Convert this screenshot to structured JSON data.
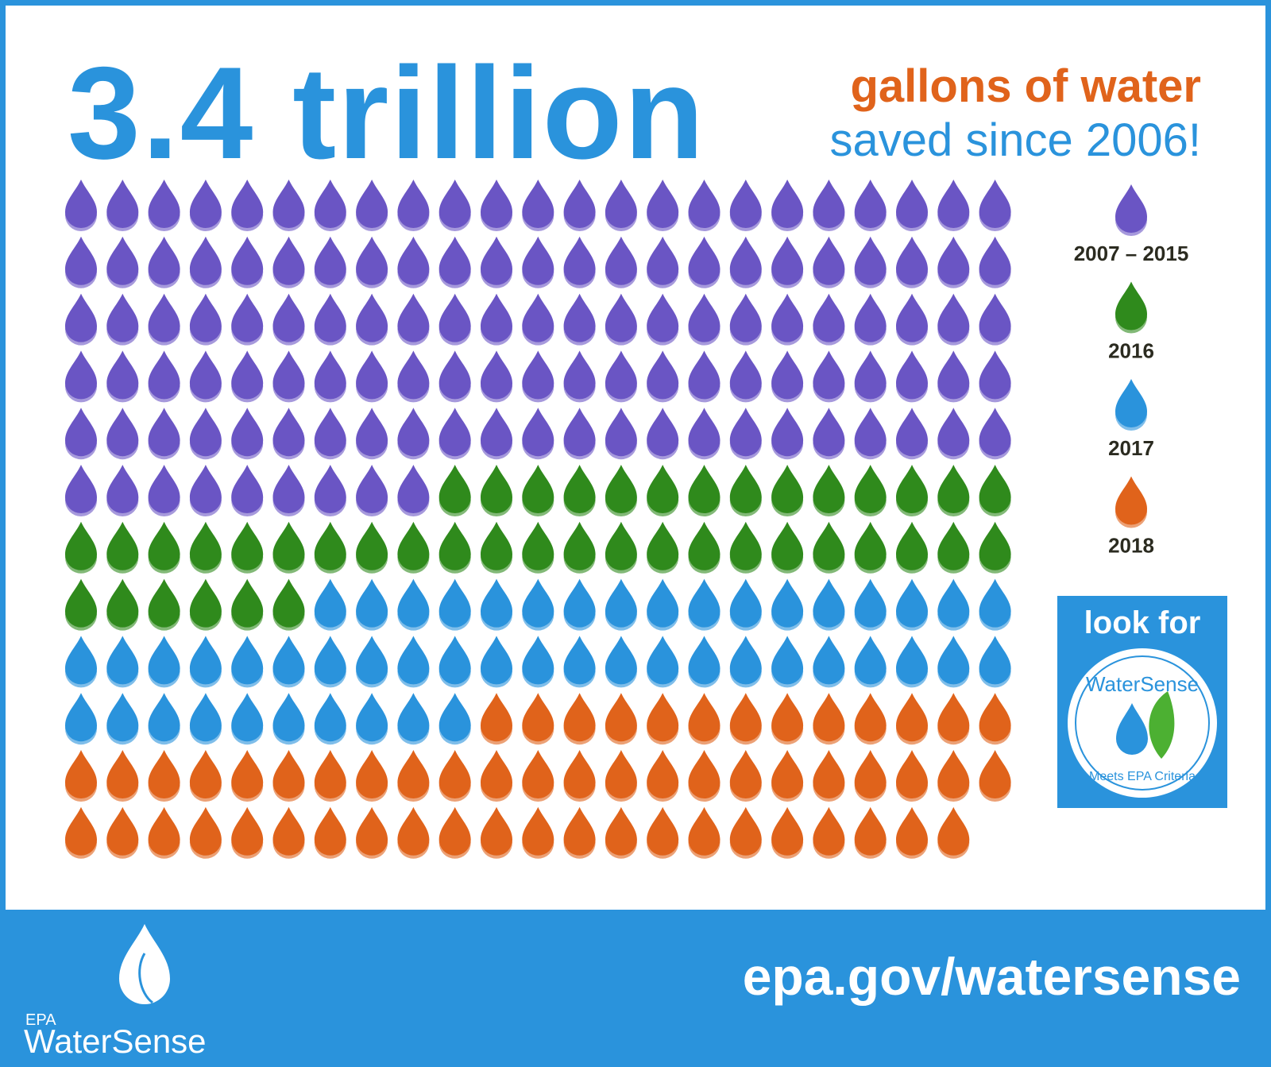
{
  "chart_data": {
    "type": "pictograph",
    "title": "3.4 trillion",
    "subtitle": [
      "gallons of water",
      "saved since 2006!"
    ],
    "series": [
      {
        "name": "2007 – 2015",
        "color": "#6a55c4",
        "values": [
          124
        ]
      },
      {
        "name": "2016",
        "color": "#2f8a1c",
        "values": [
          43
        ]
      },
      {
        "name": "2017",
        "color": "#2a93dc",
        "values": [
          50
        ]
      },
      {
        "name": "2018",
        "color": "#e0631b",
        "values": [
          58
        ]
      }
    ]
  },
  "badge": {
    "heading": "look for",
    "logo": "WaterSense",
    "ring": "Meets EPA Criteria"
  },
  "footer": {
    "agency": "EPA",
    "brand": "WaterSense",
    "url": "epa.gov/watersense"
  }
}
